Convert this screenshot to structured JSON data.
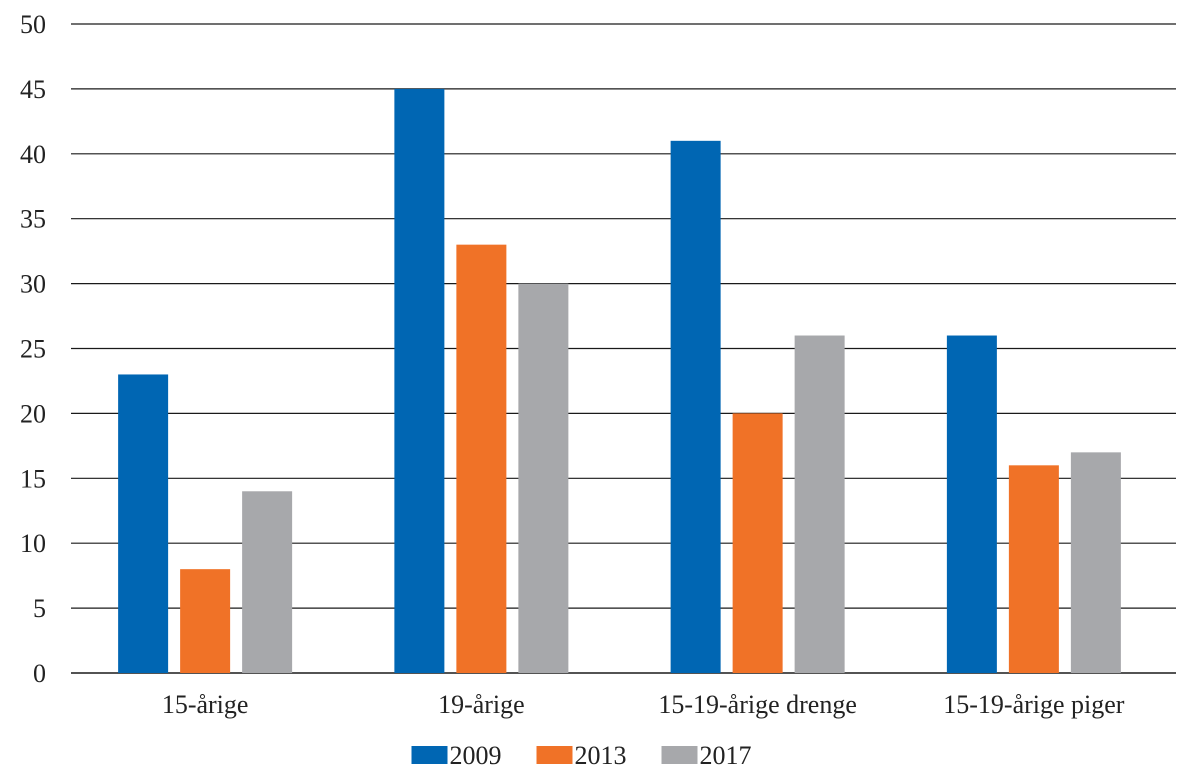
{
  "chart_data": {
    "type": "bar",
    "categories": [
      "15-årige",
      "19-årige",
      "15-19-årige drenge",
      "15-19-årige piger"
    ],
    "series": [
      {
        "name": "2009",
        "color": "#0066b3",
        "values": [
          23,
          45,
          41,
          26
        ]
      },
      {
        "name": "2013",
        "color": "#f07227",
        "values": [
          8,
          33,
          20,
          16
        ]
      },
      {
        "name": "2017",
        "color": "#a7a8ab",
        "values": [
          14,
          30,
          26,
          17
        ]
      }
    ],
    "title": "",
    "xlabel": "",
    "ylabel": "",
    "ylim": [
      0,
      50
    ],
    "yticks": [
      0,
      5,
      10,
      15,
      20,
      25,
      30,
      35,
      40,
      45,
      50
    ],
    "grid": true,
    "legend_position": "bottom-center"
  }
}
